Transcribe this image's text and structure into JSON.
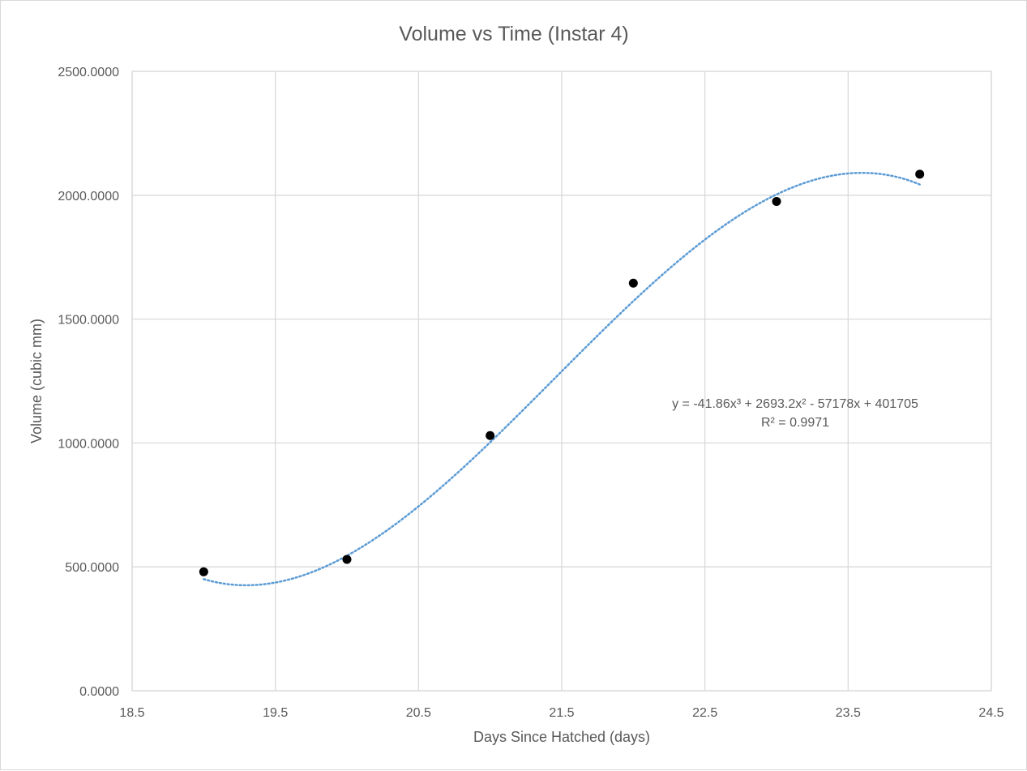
{
  "chart_data": {
    "type": "scatter",
    "title": "Volume vs Time (Instar 4)",
    "xlabel": "Days Since Hatched (days)",
    "ylabel": "Volume (cubic mm)",
    "xlim": [
      18.5,
      24.5
    ],
    "ylim": [
      0,
      2500
    ],
    "x_ticks": [
      "18.5",
      "19.5",
      "20.5",
      "21.5",
      "22.5",
      "23.5",
      "24.5"
    ],
    "y_ticks": [
      "0.0000",
      "500.0000",
      "1000.0000",
      "1500.0000",
      "2000.0000",
      "2500.0000"
    ],
    "grid": true,
    "legend": "none",
    "series": [
      {
        "x": [
          19,
          20,
          21,
          22,
          23,
          24
        ],
        "y": [
          480,
          530,
          1030,
          1645,
          1975,
          2085
        ],
        "marker_color": "#000000"
      }
    ],
    "trendline": {
      "kind": "polynomial",
      "order": 3,
      "coefficients": [
        -41.86,
        2693.2,
        -57178,
        401705
      ],
      "color": "#5b9bd5",
      "style": "dotted",
      "x_range": [
        19,
        24
      ],
      "equation_label": "y = -41.86x³ + 2693.2x² - 57178x + 401705",
      "r2_label": "R² = 0.9971"
    }
  }
}
